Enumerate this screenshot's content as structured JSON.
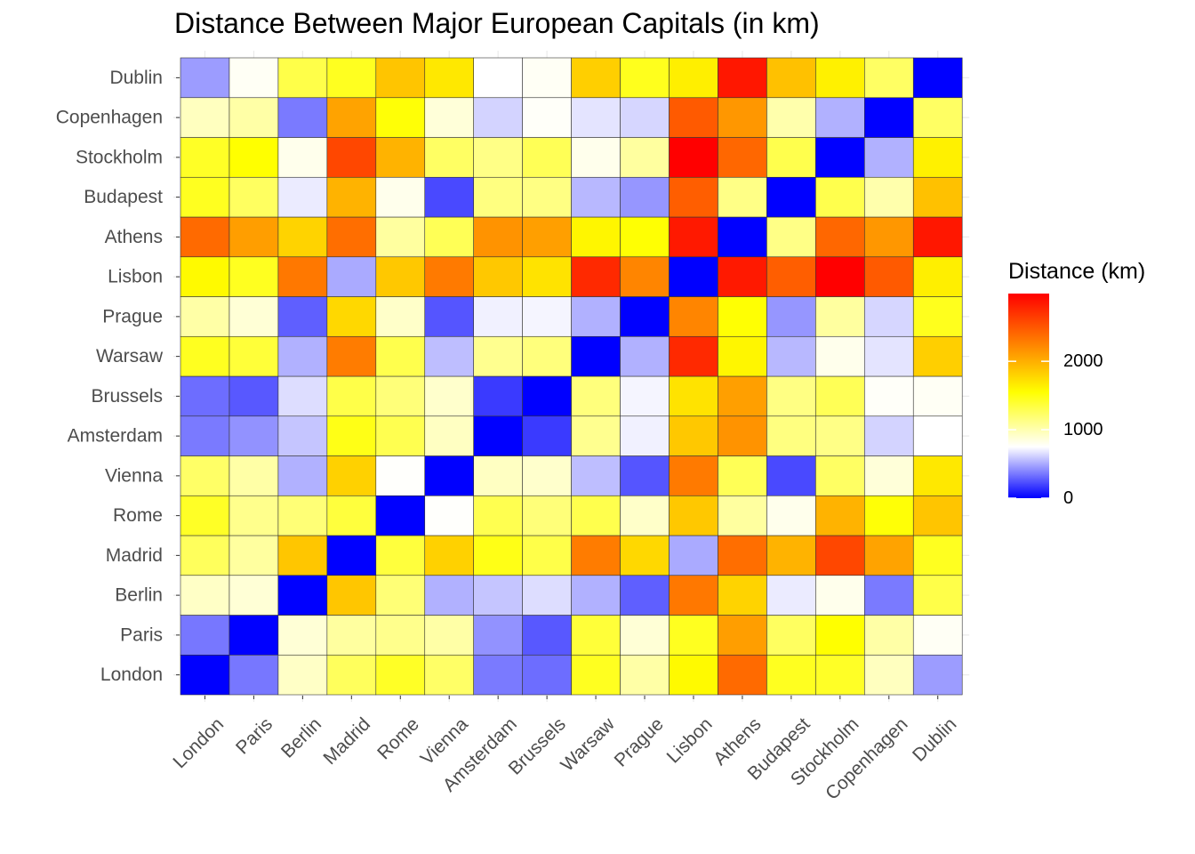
{
  "chart_data": {
    "type": "heatmap",
    "title": "Distance Between Major European Capitals (in km)",
    "xlabel": "",
    "ylabel": "",
    "x_categories": [
      "London",
      "Paris",
      "Berlin",
      "Madrid",
      "Rome",
      "Vienna",
      "Amsterdam",
      "Brussels",
      "Warsaw",
      "Prague",
      "Lisbon",
      "Athens",
      "Budapest",
      "Stockholm",
      "Copenhagen",
      "Dublin"
    ],
    "y_categories": [
      "London",
      "Paris",
      "Berlin",
      "Madrid",
      "Rome",
      "Vienna",
      "Amsterdam",
      "Brussels",
      "Warsaw",
      "Prague",
      "Lisbon",
      "Athens",
      "Budapest",
      "Stockholm",
      "Copenhagen",
      "Dublin"
    ],
    "matrix": [
      [
        0,
        350,
        930,
        1260,
        1430,
        1230,
        360,
        320,
        1450,
        1030,
        1580,
        2390,
        1450,
        1430,
        950,
        460
      ],
      [
        350,
        0,
        880,
        1050,
        1110,
        1030,
        430,
        260,
        1370,
        880,
        1450,
        2100,
        1250,
        1550,
        1030,
        780
      ],
      [
        930,
        880,
        0,
        1870,
        1180,
        520,
        580,
        650,
        520,
        280,
        2310,
        1800,
        690,
        810,
        360,
        1320
      ],
      [
        1260,
        1050,
        1870,
        0,
        1360,
        1810,
        1480,
        1320,
        2290,
        1770,
        500,
        2370,
        1980,
        2590,
        2070,
        1450
      ],
      [
        1430,
        1110,
        1180,
        1360,
        0,
        760,
        1300,
        1170,
        1310,
        920,
        1860,
        1050,
        810,
        1980,
        1530,
        1880
      ],
      [
        1230,
        1030,
        520,
        1810,
        760,
        0,
        940,
        910,
        560,
        250,
        2300,
        1280,
        215,
        1240,
        870,
        1680
      ],
      [
        360,
        430,
        580,
        1480,
        1300,
        940,
        0,
        170,
        1100,
        710,
        1860,
        2160,
        1150,
        1130,
        620,
        750
      ],
      [
        320,
        260,
        650,
        1320,
        1170,
        910,
        170,
        0,
        1160,
        720,
        1710,
        2090,
        1140,
        1280,
        770,
        780
      ],
      [
        1450,
        1370,
        520,
        2290,
        1310,
        560,
        1100,
        1160,
        0,
        520,
        2760,
        1600,
        540,
        810,
        670,
        1820
      ],
      [
        1030,
        880,
        280,
        1770,
        920,
        250,
        710,
        720,
        520,
        0,
        2240,
        1540,
        440,
        1050,
        630,
        1460
      ],
      [
        1580,
        1450,
        2310,
        500,
        1860,
        2300,
        1860,
        1710,
        2760,
        2240,
        0,
        2850,
        2460,
        2990,
        2480,
        1640
      ],
      [
        2390,
        2100,
        1800,
        2370,
        1050,
        1280,
        2160,
        2090,
        1600,
        1540,
        2850,
        0,
        1130,
        2410,
        2140,
        2860
      ],
      [
        1450,
        1250,
        690,
        1980,
        810,
        215,
        1150,
        1140,
        540,
        440,
        2460,
        1130,
        0,
        1310,
        1010,
        1900
      ],
      [
        1430,
        1550,
        810,
        2590,
        1980,
        1240,
        1130,
        1280,
        810,
        1050,
        2990,
        2410,
        1310,
        0,
        520,
        1630
      ],
      [
        950,
        1030,
        360,
        2070,
        1530,
        870,
        620,
        770,
        670,
        630,
        2480,
        2140,
        1010,
        520,
        0,
        1240
      ],
      [
        460,
        780,
        1320,
        1450,
        1880,
        1680,
        750,
        780,
        1820,
        1460,
        1640,
        2860,
        1900,
        1630,
        1240,
        0
      ]
    ],
    "legend": {
      "title": "Distance (km)",
      "ticks": [
        0,
        1000,
        2000
      ],
      "range": [
        0,
        2990
      ],
      "placement": "right",
      "colors": {
        "low": "#0000ff",
        "mid": "#ffffff",
        "high_mid": "#ffff00",
        "high": "#ff0000"
      },
      "color_stops": [
        0,
        750,
        1550,
        2990
      ]
    },
    "grid": true
  }
}
